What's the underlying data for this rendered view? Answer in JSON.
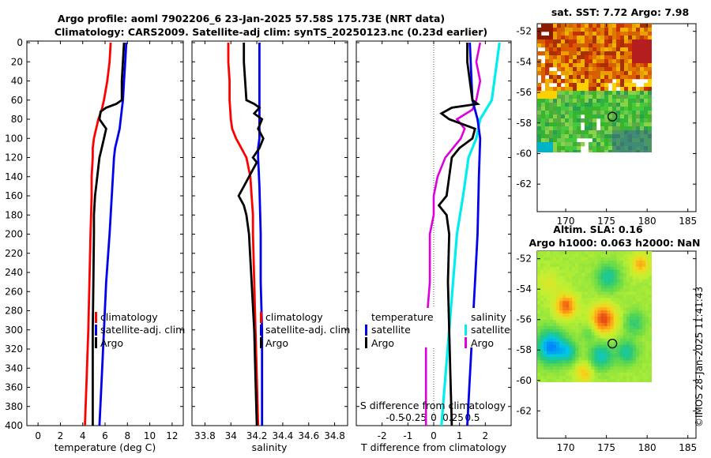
{
  "header": {
    "title_line1": "Argo profile: aoml 7902206_6 23-Jan-2025 57.58S 175.73E (NRT data)",
    "title_line2": "Climatology: CARS2009. Satellite-adj clim: synTS_20250123.nc (0.23d earlier)"
  },
  "depth_axis": {
    "ylim": [
      0,
      400
    ],
    "ticks": [
      0,
      20,
      40,
      60,
      80,
      100,
      120,
      140,
      160,
      180,
      200,
      220,
      240,
      260,
      280,
      300,
      320,
      340,
      360,
      380,
      400
    ]
  },
  "colors": {
    "climatology": "#ff0000",
    "satellite": "#0000ee",
    "argo": "#000000",
    "sat_salinity": "#00eeee",
    "argo_salinity_diff": "#dd00dd"
  },
  "chart_data": [
    {
      "type": "line",
      "name": "temperature",
      "xlabel": "temperature (deg C)",
      "xlim": [
        -1,
        13
      ],
      "xticks": [
        0,
        2,
        4,
        6,
        8,
        10,
        12
      ],
      "legend": [
        "climatology",
        "satellite-adj. clim",
        "Argo"
      ],
      "series": [
        {
          "name": "climatology",
          "depth": [
            0,
            20,
            40,
            60,
            70,
            80,
            90,
            100,
            110,
            120,
            140,
            160,
            200,
            250,
            300,
            350,
            400
          ],
          "values": [
            6.5,
            6.4,
            6.2,
            5.9,
            5.7,
            5.4,
            5.2,
            5.0,
            4.9,
            4.9,
            4.8,
            4.8,
            4.7,
            4.6,
            4.5,
            4.35,
            4.2
          ]
        },
        {
          "name": "satellite-adj. clim",
          "depth": [
            0,
            20,
            40,
            60,
            70,
            80,
            90,
            100,
            110,
            120,
            140,
            160,
            200,
            250,
            300,
            350,
            400
          ],
          "values": [
            7.9,
            7.8,
            7.7,
            7.6,
            7.5,
            7.4,
            7.3,
            7.1,
            6.9,
            6.8,
            6.7,
            6.6,
            6.4,
            6.1,
            5.9,
            5.7,
            5.5
          ]
        },
        {
          "name": "Argo",
          "depth": [
            0,
            20,
            40,
            60,
            64,
            68,
            72,
            80,
            90,
            100,
            110,
            120,
            140,
            160,
            180,
            200,
            250,
            300,
            350,
            400
          ],
          "values": [
            7.7,
            7.6,
            7.5,
            7.5,
            7.0,
            6.1,
            5.6,
            5.5,
            6.1,
            5.9,
            5.7,
            5.5,
            5.3,
            5.1,
            5.0,
            5.0,
            4.95,
            4.9,
            4.9,
            4.9
          ]
        }
      ]
    },
    {
      "type": "line",
      "name": "salinity",
      "xlabel": "salinity",
      "xlim": [
        33.7,
        34.9
      ],
      "xticks": [
        33.8,
        34,
        34.2,
        34.4,
        34.6,
        34.8
      ],
      "legend": [
        "climatology",
        "satellite-adj. clim",
        "Argo"
      ],
      "series": [
        {
          "name": "climatology",
          "depth": [
            0,
            20,
            40,
            60,
            80,
            90,
            100,
            110,
            120,
            140,
            160,
            180,
            200,
            250,
            300,
            350,
            400
          ],
          "values": [
            33.98,
            33.98,
            33.99,
            33.99,
            34.0,
            34.01,
            34.04,
            34.08,
            34.12,
            34.15,
            34.16,
            34.17,
            34.17,
            34.18,
            34.19,
            34.2,
            34.21
          ]
        },
        {
          "name": "satellite-adj. clim",
          "depth": [
            0,
            60,
            80,
            100,
            110,
            120,
            150,
            200,
            250,
            300,
            350,
            400
          ],
          "values": [
            34.22,
            34.22,
            34.22,
            34.22,
            34.21,
            34.21,
            34.22,
            34.23,
            34.23,
            34.24,
            34.24,
            34.24
          ]
        },
        {
          "name": "Argo",
          "depth": [
            0,
            20,
            40,
            60,
            64,
            68,
            74,
            80,
            90,
            100,
            110,
            120,
            125,
            135,
            150,
            160,
            170,
            180,
            200,
            250,
            300,
            350,
            400
          ],
          "values": [
            34.1,
            34.1,
            34.11,
            34.12,
            34.18,
            34.22,
            34.18,
            34.24,
            34.21,
            34.25,
            34.22,
            34.17,
            34.2,
            34.16,
            34.1,
            34.06,
            34.1,
            34.12,
            34.14,
            34.16,
            34.18,
            34.19,
            34.2
          ]
        }
      ]
    },
    {
      "type": "line",
      "name": "difference",
      "xlabel": "T difference from climatology",
      "top_label": "S difference from climatology",
      "xlim": [
        -3,
        3
      ],
      "xticks": [
        -2,
        -1,
        0,
        1,
        2
      ],
      "top_ticks": [
        "-0.5",
        "-0.25",
        "0",
        "0.25",
        "0.5"
      ],
      "legend_temperature": [
        "temperature",
        "satellite",
        "Argo"
      ],
      "legend_salinity": [
        "salinity",
        "satellite",
        "Argo"
      ],
      "series": [
        {
          "name": "satellite T diff",
          "depth": [
            0,
            60,
            80,
            100,
            140,
            200,
            250,
            300,
            350,
            400
          ],
          "values": [
            1.4,
            1.5,
            1.7,
            1.8,
            1.75,
            1.7,
            1.6,
            1.5,
            1.4,
            1.3
          ]
        },
        {
          "name": "Argo T diff",
          "depth": [
            0,
            20,
            40,
            60,
            64,
            68,
            74,
            80,
            90,
            100,
            110,
            120,
            140,
            160,
            170,
            180,
            200,
            250,
            300,
            350,
            400
          ],
          "values": [
            1.3,
            1.3,
            1.4,
            1.5,
            1.7,
            0.7,
            0.3,
            0.6,
            1.6,
            1.5,
            1.0,
            0.7,
            0.6,
            0.5,
            0.2,
            0.5,
            0.6,
            0.55,
            0.6,
            0.65,
            0.7
          ]
        },
        {
          "name": "satellite S diff",
          "depth": [
            0,
            60,
            80,
            100,
            120,
            160,
            200,
            250,
            300,
            350,
            400
          ],
          "values": [
            0.85,
            0.75,
            0.6,
            0.55,
            0.45,
            0.38,
            0.3,
            0.25,
            0.2,
            0.15,
            0.1
          ]
        },
        {
          "name": "Argo S diff",
          "depth": [
            0,
            20,
            40,
            60,
            70,
            80,
            90,
            100,
            120,
            140,
            160,
            180,
            200,
            250,
            300,
            350,
            400
          ],
          "values": [
            0.6,
            0.55,
            0.6,
            0.55,
            0.5,
            0.3,
            0.4,
            0.35,
            0.15,
            0.05,
            0.0,
            0.0,
            -0.05,
            -0.05,
            -0.1,
            -0.1,
            -0.1
          ]
        }
      ]
    },
    {
      "type": "heatmap",
      "name": "sst_map",
      "title": "sat. SST: 7.72 Argo: 7.98",
      "xticks": [
        170,
        175,
        180,
        185
      ],
      "yticks": [
        -52,
        -54,
        -56,
        -58,
        -60,
        -62
      ],
      "xlim": [
        166.5,
        186
      ],
      "ylim": [
        -63.8,
        -51.5
      ],
      "argo_position": [
        175.73,
        -57.58
      ]
    },
    {
      "type": "heatmap",
      "name": "sla_map",
      "title_line1": "Altim. SLA: 0.16",
      "title_line2": "Argo h1000: 0.063 h2000: NaN",
      "xticks": [
        170,
        175,
        180,
        185
      ],
      "yticks": [
        -52,
        -54,
        -56,
        -58,
        -60,
        -62
      ],
      "xlim": [
        166.5,
        186
      ],
      "ylim": [
        -63.8,
        -51.5
      ],
      "argo_position": [
        175.73,
        -57.58
      ]
    }
  ],
  "credit": "©IMOS 28-Jan-2025 11:41:43"
}
